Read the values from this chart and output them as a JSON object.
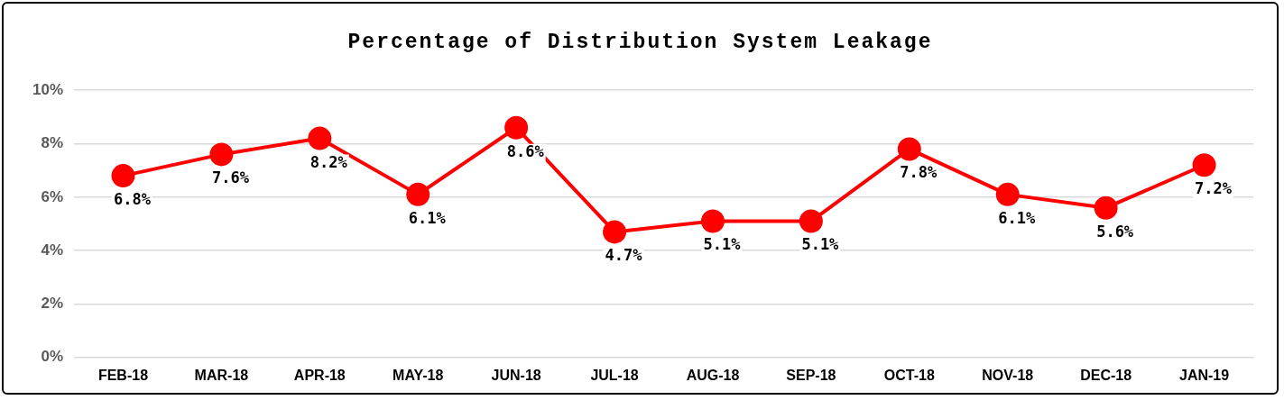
{
  "chart_data": {
    "type": "line",
    "title": "Percentage of Distribution System Leakage",
    "categories": [
      "FEB-18",
      "MAR-18",
      "APR-18",
      "MAY-18",
      "JUN-18",
      "JUL-18",
      "AUG-18",
      "SEP-18",
      "OCT-18",
      "NOV-18",
      "DEC-18",
      "JAN-19"
    ],
    "series": [
      {
        "color": "#ff0000",
        "values": [
          6.8,
          7.6,
          8.2,
          6.1,
          8.6,
          4.7,
          5.1,
          5.1,
          7.8,
          6.1,
          5.6,
          7.2
        ],
        "value_labels": [
          "6.8%",
          "7.6%",
          "8.2%",
          "6.1%",
          "8.6%",
          "4.7%",
          "5.1%",
          "5.1%",
          "7.8%",
          "6.1%",
          "5.6%",
          "7.2%"
        ]
      }
    ],
    "ylim": [
      0,
      10
    ],
    "yticks": [
      {
        "value": 0,
        "label": "0%"
      },
      {
        "value": 2,
        "label": "2%"
      },
      {
        "value": 4,
        "label": "4%"
      },
      {
        "value": 6,
        "label": "6%"
      },
      {
        "value": 8,
        "label": "8%"
      },
      {
        "value": 10,
        "label": "10%"
      }
    ],
    "grid": "y",
    "legend": false,
    "marker": "circle",
    "line_style": "solid"
  }
}
